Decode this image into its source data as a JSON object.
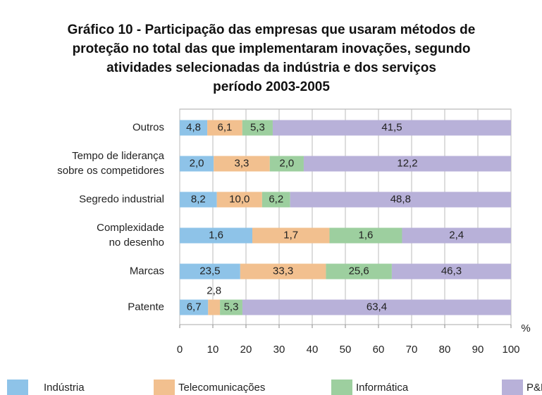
{
  "chart_data": {
    "type": "hbar100",
    "title": [
      "Gráfico 10 - Participação das empresas que usaram métodos de",
      "proteção no total das que implementaram inovações, segundo",
      "atividades selecionadas da indústria e dos serviços",
      "período 2003-2005"
    ],
    "categories": [
      [
        "Outros"
      ],
      [
        "Tempo de liderança",
        "sobre os competidores"
      ],
      [
        "Segredo industrial"
      ],
      [
        "Complexidade",
        "no desenho"
      ],
      [
        "Marcas"
      ],
      [
        "Patente"
      ]
    ],
    "series": [
      {
        "name": "Indústria",
        "color": "#8ec3e8",
        "values": [
          4.8,
          2.0,
          8.2,
          1.6,
          23.5,
          6.7
        ],
        "value_labels": [
          "4,8",
          "2,0",
          "8,2",
          "1,6",
          "23,5",
          "6,7"
        ]
      },
      {
        "name": "Telecomunicações",
        "color": "#f2c08f",
        "values": [
          6.1,
          3.3,
          10.0,
          1.7,
          33.3,
          2.8
        ],
        "value_labels": [
          "6,1",
          "3,3",
          "10,0",
          "1,7",
          "33,3",
          "2,8"
        ]
      },
      {
        "name": "Informática",
        "color": "#9dcf9f",
        "values": [
          5.3,
          2.0,
          6.2,
          1.6,
          25.6,
          5.3
        ],
        "value_labels": [
          "5,3",
          "2,0",
          "6,2",
          "1,6",
          "25,6",
          "5,3"
        ]
      },
      {
        "name": "P&D",
        "color": "#b8b1d9",
        "values": [
          41.5,
          12.2,
          48.8,
          2.4,
          46.3,
          63.4
        ],
        "value_labels": [
          "41,5",
          "12,2",
          "48,8",
          "2,4",
          "46,3",
          "63,4"
        ]
      }
    ],
    "xlabel": "%",
    "xlim": [
      0,
      100
    ],
    "xticks": [
      0,
      10,
      20,
      30,
      40,
      50,
      60,
      70,
      80,
      90,
      100
    ],
    "grid": true
  }
}
